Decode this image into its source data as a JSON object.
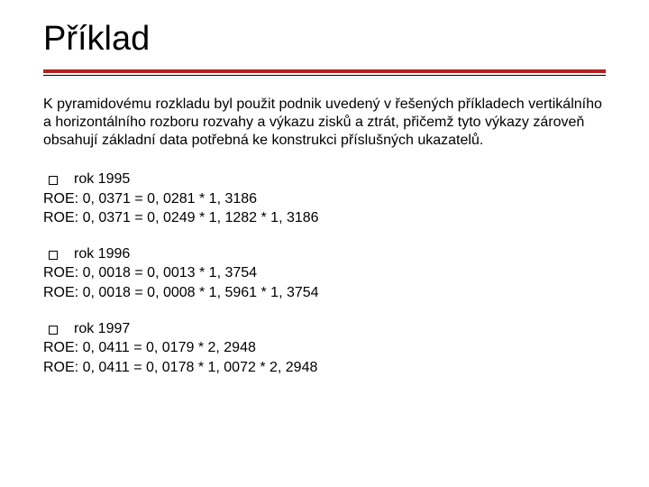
{
  "title": "Příklad",
  "colors": {
    "rule_thick": "#b22222",
    "rule_thin": "#000000",
    "text": "#000000",
    "background": "#ffffff"
  },
  "typography": {
    "title_fontsize": 38,
    "body_fontsize": 16,
    "font_family": "Verdana"
  },
  "intro": "K pyramidovému rozkladu byl použit podnik uvedený v řešených příkladech vertikálního a horizontálního rozboru rozvahy a výkazu zisků a ztrát, přičemž tyto výkazy zároveň obsahují základní data potřebná ke konstrukci příslušných ukazatelů.",
  "blocks": [
    {
      "year": "rok 1995",
      "line1": "ROE: 0, 0371 =  0, 0281 * 1, 3186",
      "line2": "ROE: 0, 0371 = 0, 0249 * 1, 1282 * 1, 3186"
    },
    {
      "year": "rok 1996",
      "line1": "ROE: 0, 0018 = 0, 0013 * 1, 3754",
      "line2": "ROE: 0, 0018 = 0, 0008 * 1, 5961 * 1, 3754"
    },
    {
      "year": "rok 1997",
      "line1": "ROE: 0, 0411 = 0, 0179 * 2, 2948",
      "line2": "ROE: 0, 0411 = 0, 0178 * 1, 0072 * 2, 2948"
    }
  ]
}
